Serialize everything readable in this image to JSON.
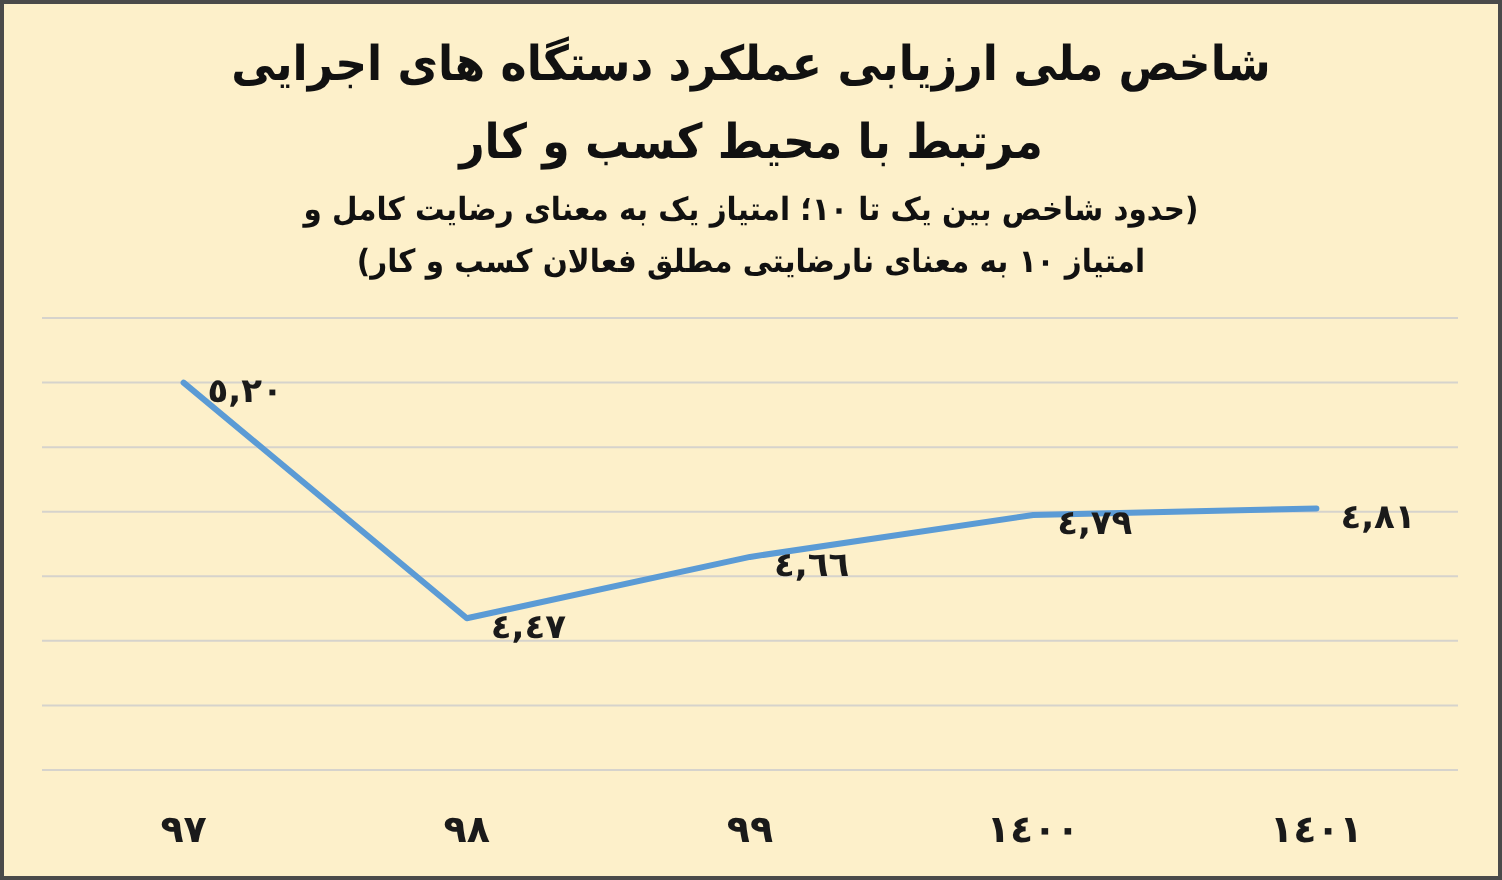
{
  "chart_data": {
    "type": "line",
    "title": "شاخص ملی ارزیابی عملکرد دستگاه های اجرایی مرتبط با محیط کسب و کار",
    "subtitle": "(حدود شاخص بین یک تا ١٠؛ امتیاز یک به معنای رضایت کامل و امتیاز ١٠ به معنای نارضایتی مطلق فعالان کسب و کار)",
    "categories": [
      "٩٧",
      "٩٨",
      "٩٩",
      "١٤٠٠",
      "١٤٠١"
    ],
    "values": [
      5.2,
      4.47,
      4.66,
      4.79,
      4.81
    ],
    "value_labels": [
      "٥,٢٠",
      "٤,٤٧",
      "٤,٦٦",
      "٤,٧٩",
      "٤,٨١"
    ],
    "color": "#5b9bd5",
    "ylim": [
      4,
      5.4
    ],
    "yticks": [
      {
        "value": 4,
        "label": null
      },
      {
        "value": 4.2,
        "label": null
      },
      {
        "value": 4.4,
        "label": null
      },
      {
        "value": 4.6,
        "label": null
      },
      {
        "value": 4.8,
        "label": null
      },
      {
        "value": 5,
        "label": null
      },
      {
        "value": 5.2,
        "label": null
      },
      {
        "value": 5.4,
        "label": null
      }
    ],
    "grid": "y",
    "tick_labels": "x"
  }
}
